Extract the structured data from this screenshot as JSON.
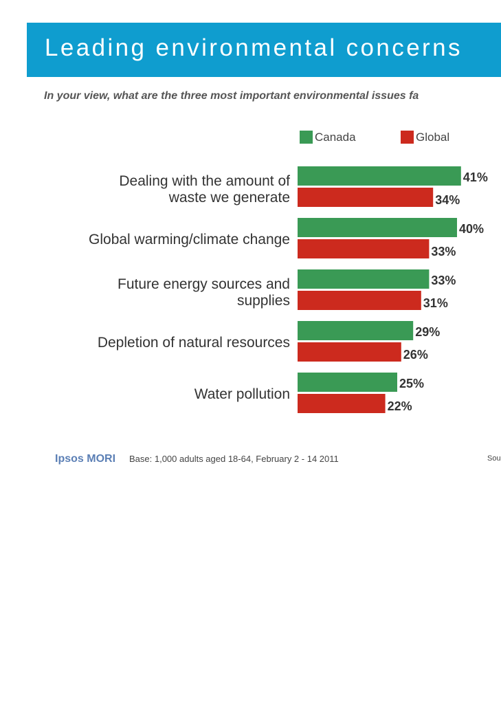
{
  "header": {
    "title": "Leading environmental concerns"
  },
  "subtitle": "In your view, what are the three most important environmental issues fa",
  "colors": {
    "header_bg": "#0f9dcf",
    "canada": "#3a9a55",
    "global": "#cc2a1e"
  },
  "chart_data": {
    "type": "bar",
    "orientation": "horizontal",
    "categories": [
      "Dealing with the amount of waste we generate",
      "Global warming/climate change",
      "Future energy sources and supplies",
      "Depletion of natural resources",
      "Water pollution"
    ],
    "series": [
      {
        "name": "Canada",
        "values": [
          41,
          40,
          33,
          29,
          25
        ],
        "labels": [
          "41%",
          "40%",
          "33%",
          "29%",
          "25%"
        ]
      },
      {
        "name": "Global",
        "values": [
          34,
          33,
          31,
          26,
          22
        ],
        "labels": [
          "34%",
          "33%",
          "31%",
          "26%",
          "22%"
        ]
      }
    ],
    "xlim": [
      0,
      100
    ],
    "legend": "top"
  },
  "legend": {
    "canada": "Canada",
    "global": "Global"
  },
  "footer": {
    "logo": "Ipsos MORI",
    "base": "Base: 1,000 adults aged 18-64, February 2 - 14 2011",
    "source": "Sou"
  }
}
